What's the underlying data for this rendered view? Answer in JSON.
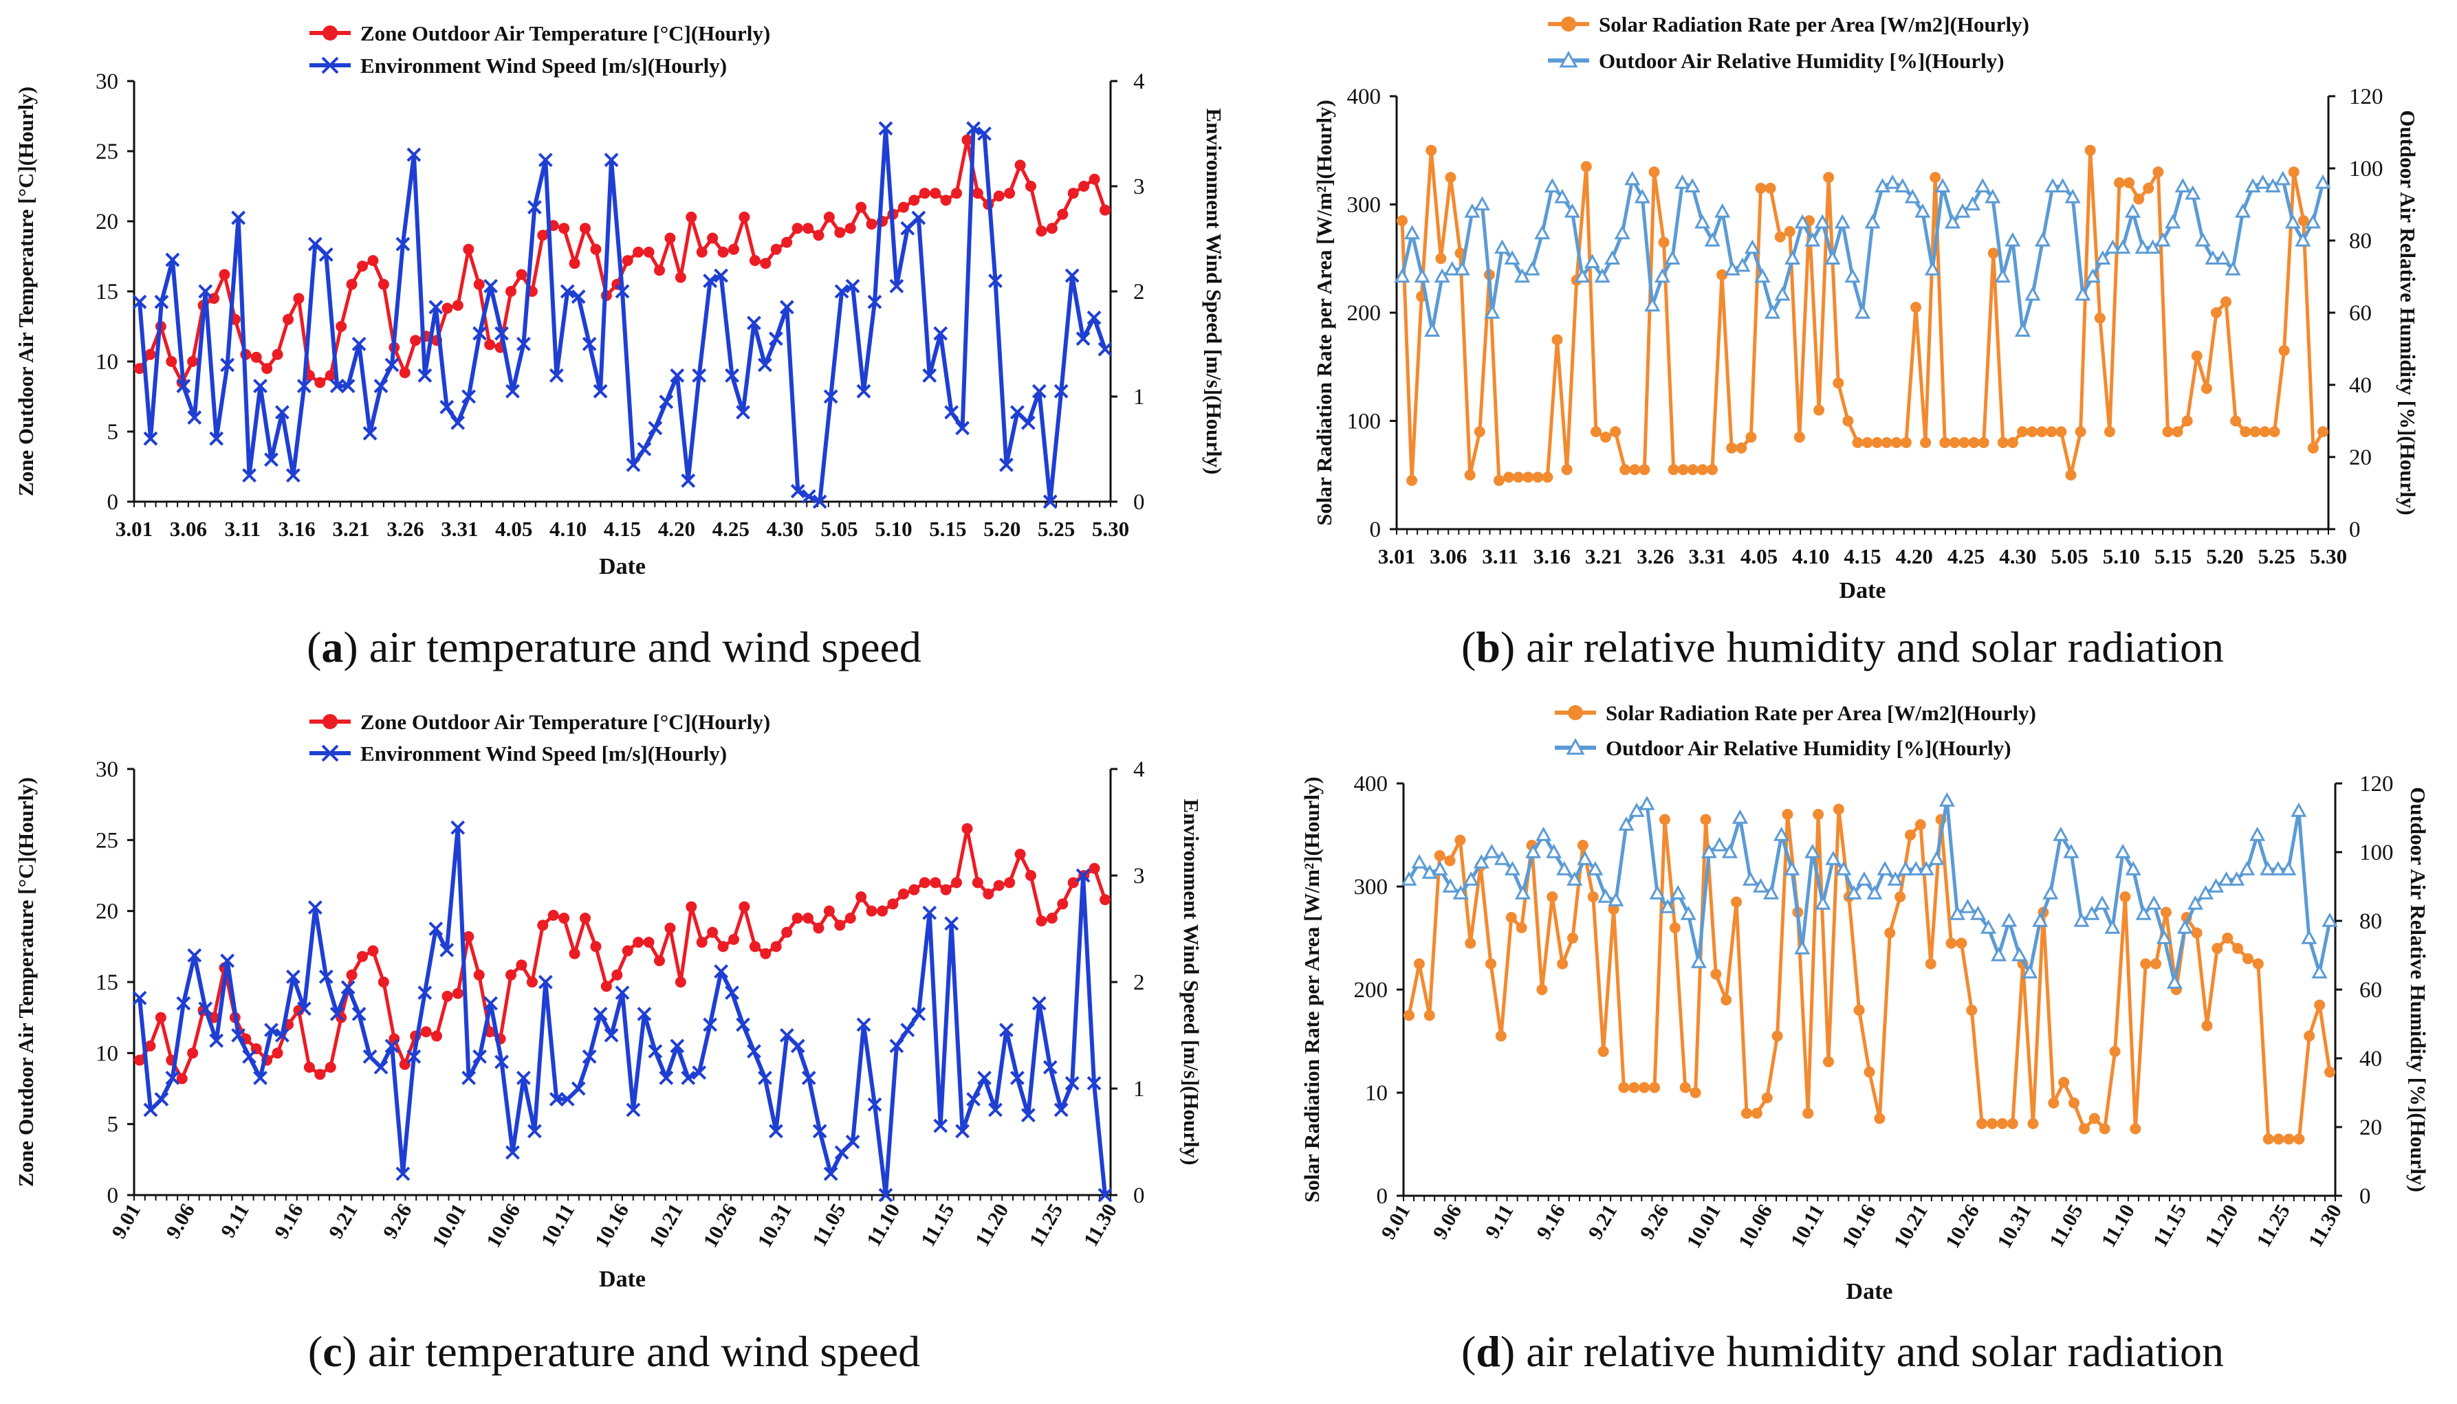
{
  "captions": [
    {
      "letter": "a",
      "text": "air temperature and wind speed"
    },
    {
      "letter": "b",
      "text": "air relative humidity and solar radiation"
    },
    {
      "letter": "c",
      "text": "air temperature and wind speed"
    },
    {
      "letter": "d",
      "text": "air relative humidity and solar radiation"
    }
  ],
  "chart_data": [
    {
      "id": "a",
      "type": "line",
      "xlabel": "Date",
      "ylabel_left": "Zone Outdoor Air Temperature [°C](Hourly)",
      "ylabel_right": "Environment Wind Speed [m/s](Hourly)",
      "ylim_left": [
        0,
        30
      ],
      "ylim_right": [
        0,
        4
      ],
      "yticks_left": [
        0,
        5,
        10,
        15,
        20,
        25,
        30
      ],
      "yticks_right": [
        0,
        1,
        2,
        3,
        4
      ],
      "x_ticklabels": [
        "3.01",
        "3.06",
        "3.11",
        "3.16",
        "3.21",
        "3.26",
        "3.31",
        "4.05",
        "4.10",
        "4.15",
        "4.20",
        "4.25",
        "4.30",
        "5.05",
        "5.10",
        "5.15",
        "5.20",
        "5.25",
        "5.30"
      ],
      "legend_position": "top-center",
      "series": [
        {
          "name": "Zone Outdoor Air  Temperature [°C](Hourly)",
          "axis": "left",
          "color": "#ec1c24",
          "marker": "circle",
          "values": [
            9.5,
            10.5,
            12.5,
            10,
            8.5,
            10,
            14,
            14.5,
            16.2,
            13,
            10.5,
            10.3,
            9.5,
            10.5,
            13,
            14.5,
            9,
            8.5,
            9,
            12.5,
            15.5,
            16.8,
            17.2,
            15.5,
            11,
            9.2,
            11.5,
            11.8,
            11.5,
            13.8,
            14,
            18,
            15.5,
            11.2,
            11,
            15,
            16.2,
            15,
            19,
            19.7,
            19.5,
            17,
            19.5,
            18,
            14.7,
            15.5,
            17.2,
            17.8,
            17.8,
            16.5,
            18.8,
            16,
            20.3,
            17.8,
            18.8,
            17.8,
            18,
            20.3,
            17.2,
            17,
            18,
            18.5,
            19.5,
            19.5,
            19,
            20.3,
            19.2,
            19.5,
            21,
            19.8,
            20,
            20.5,
            21,
            21.5,
            22,
            22,
            21.5,
            22,
            25.8,
            22,
            21.2,
            21.8,
            22,
            24,
            22.5,
            19.3,
            19.5,
            20.5,
            22,
            22.5,
            23,
            20.8
          ]
        },
        {
          "name": "Environment  Wind Speed [m/s](Hourly)",
          "axis": "right",
          "color": "#1f3fd3",
          "marker": "x",
          "values": [
            1.9,
            0.6,
            1.9,
            2.3,
            1.1,
            0.8,
            2.0,
            0.6,
            1.3,
            2.7,
            0.25,
            1.1,
            0.4,
            0.85,
            0.25,
            1.1,
            2.45,
            2.35,
            1.1,
            1.1,
            1.5,
            0.65,
            1.1,
            1.3,
            2.45,
            3.3,
            1.2,
            1.85,
            0.9,
            0.75,
            1.0,
            1.6,
            2.05,
            1.6,
            1.05,
            1.5,
            2.8,
            3.25,
            1.2,
            2.0,
            1.95,
            1.5,
            1.05,
            3.25,
            2.0,
            0.35,
            0.5,
            0.7,
            0.95,
            1.2,
            0.2,
            1.2,
            2.1,
            2.15,
            1.2,
            0.85,
            1.7,
            1.3,
            1.55,
            1.85,
            0.1,
            0.05,
            0.0,
            1.0,
            2.0,
            2.05,
            1.05,
            1.9,
            3.55,
            2.05,
            2.6,
            2.7,
            1.2,
            1.6,
            0.85,
            0.7,
            3.55,
            3.5,
            2.1,
            0.35,
            0.85,
            0.75,
            1.05,
            0.0,
            1.05,
            2.15,
            1.55,
            1.75,
            1.45
          ]
        }
      ]
    },
    {
      "id": "b",
      "type": "line",
      "xlabel": "Date",
      "ylabel_left": "Solar Radiation Rate per Area [W/m²](Hourly)",
      "ylabel_right": "Outdoor Air Relative Humidity [%](Hourly)",
      "ylim_left": [
        0,
        400
      ],
      "ylim_right": [
        0,
        120
      ],
      "yticks_left": [
        0,
        100,
        200,
        300,
        400
      ],
      "yticks_right": [
        0,
        20,
        40,
        60,
        80,
        100,
        120
      ],
      "x_ticklabels": [
        "3.01",
        "3.06",
        "3.11",
        "3.16",
        "3.21",
        "3.26",
        "3.31",
        "4.05",
        "4.10",
        "4.15",
        "4.20",
        "4.25",
        "4.30",
        "5.05",
        "5.10",
        "5.15",
        "5.20",
        "5.25",
        "5.30"
      ],
      "legend_position": "top-center",
      "series": [
        {
          "name": "Solar Radiation Rate per Area [W/m2](Hourly)",
          "axis": "left",
          "color": "#f28a30",
          "marker": "circle",
          "values": [
            285,
            45,
            215,
            350,
            250,
            325,
            255,
            50,
            90,
            235,
            45,
            48,
            48,
            48,
            48,
            48,
            175,
            55,
            230,
            335,
            90,
            85,
            90,
            55,
            55,
            55,
            330,
            265,
            55,
            55,
            55,
            55,
            55,
            235,
            75,
            75,
            85,
            315,
            315,
            270,
            275,
            85,
            285,
            110,
            325,
            135,
            100,
            80,
            80,
            80,
            80,
            80,
            80,
            205,
            80,
            325,
            80,
            80,
            80,
            80,
            80,
            255,
            80,
            80,
            90,
            90,
            90,
            90,
            90,
            50,
            90,
            350,
            195,
            90,
            320,
            320,
            305,
            315,
            330,
            90,
            90,
            100,
            160,
            130,
            200,
            210,
            100,
            90,
            90,
            90,
            90,
            165,
            330,
            285,
            75,
            90
          ]
        },
        {
          "name": "Outdoor Air Relative Humidity [%](Hourly)",
          "axis": "right",
          "color": "#5b9bd5",
          "marker": "triangle",
          "values": [
            70,
            82,
            70,
            55,
            70,
            72,
            72,
            88,
            90,
            60,
            78,
            75,
            70,
            72,
            82,
            95,
            92,
            88,
            70,
            74,
            70,
            75,
            82,
            97,
            92,
            62,
            70,
            75,
            96,
            95,
            85,
            80,
            88,
            72,
            73,
            78,
            70,
            60,
            65,
            75,
            85,
            80,
            85,
            75,
            85,
            70,
            60,
            85,
            95,
            96,
            95,
            92,
            88,
            72,
            95,
            85,
            88,
            90,
            95,
            92,
            70,
            80,
            55,
            65,
            80,
            95,
            95,
            92,
            65,
            70,
            75,
            78,
            78,
            88,
            78,
            78,
            80,
            85,
            95,
            93,
            80,
            75,
            75,
            72,
            88,
            95,
            96,
            95,
            97,
            85,
            80,
            85,
            96
          ]
        }
      ]
    },
    {
      "id": "c",
      "type": "line",
      "xlabel": "Date",
      "ylabel_left": "Zone Outdoor Air Temperature [°C](Hourly)",
      "ylabel_right": "Environment Wind Speed [m/s](Hourly)",
      "ylim_left": [
        0,
        30
      ],
      "ylim_right": [
        0,
        4
      ],
      "yticks_left": [
        0,
        5,
        10,
        15,
        20,
        25,
        30
      ],
      "yticks_right": [
        0,
        1,
        2,
        3,
        4
      ],
      "x_ticklabels": [
        "9.01",
        "9.06",
        "9.11",
        "9.16",
        "9.21",
        "9.26",
        "10.01",
        "10.06",
        "10.11",
        "10.16",
        "10.21",
        "10.26",
        "10.31",
        "11.05",
        "11.10",
        "11.15",
        "11.20",
        "11.25",
        "11.30"
      ],
      "legend_position": "top-center",
      "series": [
        {
          "name": "Zone Outdoor Air  Temperature [°C](Hourly)",
          "axis": "left",
          "color": "#ec1c24",
          "marker": "circle",
          "values": [
            9.5,
            10.5,
            12.5,
            9.5,
            8.2,
            10,
            13,
            12.5,
            16,
            12.5,
            11,
            10.3,
            9.5,
            10,
            12,
            13,
            9,
            8.5,
            9,
            12.5,
            15.5,
            16.8,
            17.2,
            15,
            11,
            9.2,
            11.2,
            11.5,
            11.2,
            14,
            14.2,
            18.2,
            15.5,
            11.5,
            11,
            15.5,
            16.2,
            15,
            19,
            19.7,
            19.5,
            17,
            19.5,
            17.5,
            14.7,
            15.5,
            17.2,
            17.8,
            17.8,
            16.5,
            18.8,
            15,
            20.3,
            17.8,
            18.5,
            17.5,
            18,
            20.3,
            17.5,
            17,
            17.5,
            18.5,
            19.5,
            19.5,
            18.8,
            20,
            19,
            19.5,
            21,
            20,
            20,
            20.5,
            21.2,
            21.5,
            22,
            22,
            21.5,
            22,
            25.8,
            22,
            21.2,
            21.8,
            22,
            24,
            22.5,
            19.3,
            19.5,
            20.5,
            22,
            22.5,
            23,
            20.8
          ]
        },
        {
          "name": "Environment  Wind Speed [m/s](Hourly)",
          "axis": "right",
          "color": "#1f3fd3",
          "marker": "x",
          "values": [
            1.85,
            0.8,
            0.9,
            1.1,
            1.8,
            2.25,
            1.75,
            1.45,
            2.2,
            1.5,
            1.3,
            1.1,
            1.55,
            1.5,
            2.05,
            1.75,
            2.7,
            2.05,
            1.7,
            1.95,
            1.7,
            1.3,
            1.2,
            1.4,
            0.2,
            1.3,
            1.9,
            2.5,
            2.3,
            3.45,
            1.1,
            1.3,
            1.8,
            1.25,
            0.4,
            1.1,
            0.6,
            2.0,
            0.9,
            0.9,
            1.0,
            1.3,
            1.7,
            1.5,
            1.9,
            0.8,
            1.7,
            1.35,
            1.1,
            1.4,
            1.1,
            1.15,
            1.6,
            2.1,
            1.9,
            1.6,
            1.35,
            1.1,
            0.6,
            1.5,
            1.4,
            1.1,
            0.6,
            0.2,
            0.4,
            0.5,
            1.6,
            0.85,
            0.0,
            1.4,
            1.55,
            1.7,
            2.65,
            0.65,
            2.55,
            0.6,
            0.9,
            1.1,
            0.8,
            1.55,
            1.1,
            0.75,
            1.8,
            1.2,
            0.8,
            1.05,
            3.0,
            1.05,
            0.0
          ]
        }
      ]
    },
    {
      "id": "d",
      "type": "line",
      "xlabel": "Date",
      "ylabel_left": "Solar Radiation Rate per Area [W/m²](Hourly)",
      "ylabel_right": "Outdoor Air Relative Humidity [%](Hourly)",
      "ylim_left": [
        0,
        400
      ],
      "ylim_right": [
        0,
        120
      ],
      "yticks_left": [
        "0",
        "10",
        "200",
        "300",
        "400"
      ],
      "yticks_right": [
        0,
        20,
        40,
        60,
        80,
        100,
        120
      ],
      "x_ticklabels": [
        "9.01",
        "9.06",
        "9.11",
        "9.16",
        "9.21",
        "9.26",
        "10.01",
        "10.06",
        "10.11",
        "10.16",
        "10.21",
        "10.26",
        "10.31",
        "11.05",
        "11.10",
        "11.15",
        "11.20",
        "11.25",
        "11.30"
      ],
      "legend_position": "top-center",
      "series": [
        {
          "name": "Solar Radiation Rate per Area [W/m2](Hourly)",
          "axis": "left",
          "color": "#f28a30",
          "marker": "circle",
          "values": [
            175,
            225,
            175,
            330,
            325,
            345,
            245,
            320,
            225,
            155,
            270,
            260,
            340,
            200,
            290,
            225,
            250,
            340,
            290,
            140,
            278,
            105,
            105,
            105,
            105,
            365,
            260,
            105,
            100,
            365,
            215,
            190,
            285,
            80,
            80,
            95,
            155,
            370,
            275,
            80,
            370,
            130,
            375,
            290,
            180,
            120,
            75,
            255,
            290,
            350,
            360,
            225,
            365,
            245,
            245,
            180,
            70,
            70,
            70,
            70,
            225,
            70,
            275,
            90,
            110,
            90,
            65,
            75,
            65,
            140,
            290,
            65,
            225,
            225,
            275,
            200,
            270,
            255,
            165,
            240,
            250,
            240,
            230,
            225,
            55,
            55,
            55,
            55,
            155,
            185,
            120
          ]
        },
        {
          "name": "Outdoor Air Relative Humidity [%](Hourly)",
          "axis": "right",
          "color": "#5b9bd5",
          "marker": "triangle",
          "values": [
            92,
            97,
            94,
            95,
            90,
            88,
            92,
            97,
            100,
            98,
            95,
            88,
            100,
            105,
            100,
            95,
            92,
            98,
            95,
            87,
            86,
            108,
            112,
            114,
            88,
            84,
            88,
            82,
            68,
            100,
            102,
            100,
            110,
            92,
            90,
            88,
            105,
            95,
            72,
            100,
            85,
            98,
            95,
            88,
            92,
            88,
            95,
            92,
            95,
            95,
            95,
            98,
            115,
            82,
            84,
            82,
            78,
            70,
            80,
            70,
            65,
            80,
            88,
            105,
            100,
            80,
            82,
            85,
            78,
            100,
            95,
            82,
            85,
            75,
            62,
            78,
            85,
            88,
            90,
            92,
            92,
            95,
            105,
            95,
            95,
            95,
            112,
            75,
            65,
            80
          ]
        }
      ]
    }
  ]
}
